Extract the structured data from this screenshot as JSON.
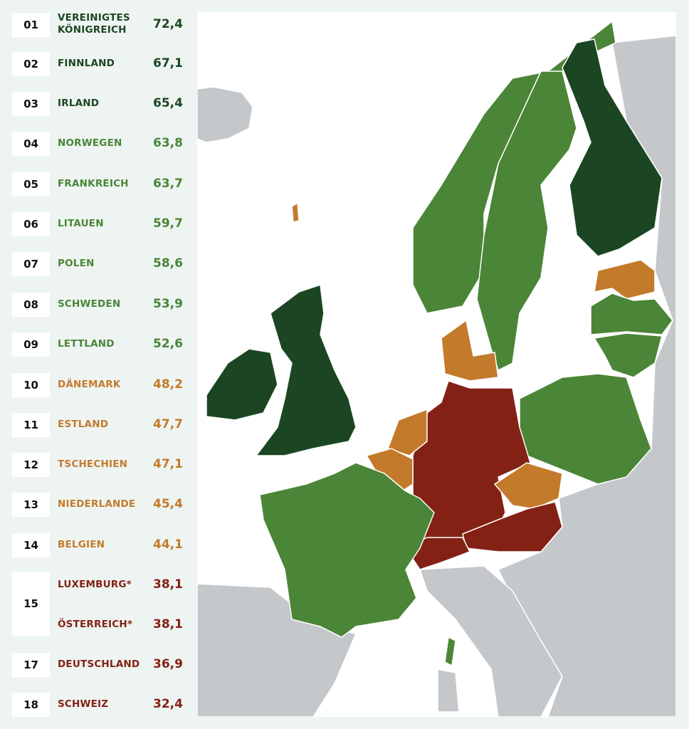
{
  "colors": {
    "dark_green": "#1c4623",
    "mid_green": "#4b8537",
    "orange": "#c47a2b",
    "red": "#842115",
    "grey": "#c5c8cb",
    "sea": "#ffffff"
  },
  "ranking": [
    {
      "rank": "01",
      "name": "VEREINIGTES KÖNIGREICH",
      "value": "72,4",
      "color": "#1c4623"
    },
    {
      "rank": "02",
      "name": "FINNLAND",
      "value": "67,1",
      "color": "#1c4623"
    },
    {
      "rank": "03",
      "name": "IRLAND",
      "value": "65,4",
      "color": "#1c4623"
    },
    {
      "rank": "04",
      "name": "NORWEGEN",
      "value": "63,8",
      "color": "#4b8537"
    },
    {
      "rank": "05",
      "name": "FRANKREICH",
      "value": "63,7",
      "color": "#4b8537"
    },
    {
      "rank": "06",
      "name": "LITAUEN",
      "value": "59,7",
      "color": "#4b8537"
    },
    {
      "rank": "07",
      "name": "POLEN",
      "value": "58,6",
      "color": "#4b8537"
    },
    {
      "rank": "08",
      "name": "SCHWEDEN",
      "value": "53,9",
      "color": "#4b8537"
    },
    {
      "rank": "09",
      "name": "LETTLAND",
      "value": "52,6",
      "color": "#4b8537"
    },
    {
      "rank": "10",
      "name": "DÄNEMARK",
      "value": "48,2",
      "color": "#c47a2b"
    },
    {
      "rank": "11",
      "name": "ESTLAND",
      "value": "47,7",
      "color": "#c47a2b"
    },
    {
      "rank": "12",
      "name": "TSCHECHIEN",
      "value": "47,1",
      "color": "#c47a2b"
    },
    {
      "rank": "13",
      "name": "NIEDERLANDE",
      "value": "45,4",
      "color": "#c47a2b"
    },
    {
      "rank": "14",
      "name": "BELGIEN",
      "value": "44,1",
      "color": "#c47a2b"
    },
    {
      "rank": "15",
      "name": "LUXEMBURG*",
      "value": "38,1",
      "color": "#842115"
    },
    {
      "rank": "15",
      "name": "ÖSTERREICH*",
      "value": "38,1",
      "color": "#842115"
    },
    {
      "rank": "17",
      "name": "DEUTSCHLAND",
      "value": "36,9",
      "color": "#842115"
    },
    {
      "rank": "18",
      "name": "SCHWEIZ",
      "value": "32,4",
      "color": "#842115"
    }
  ]
}
